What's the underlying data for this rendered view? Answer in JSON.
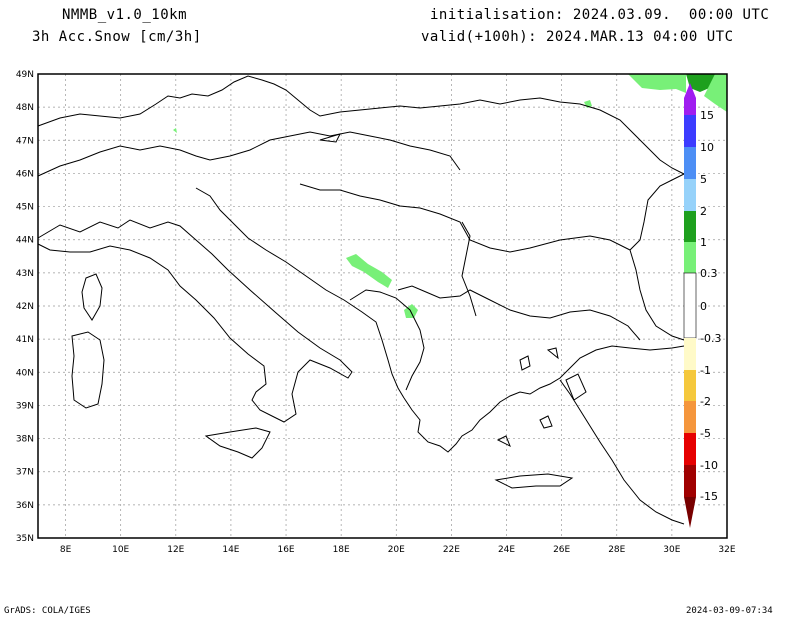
{
  "header": {
    "model": "NMMB_v1.0_10km",
    "field": "3h Acc.Snow [cm/3h]",
    "init": "initialisation: 2024.03.09.  00:00 UTC",
    "valid": "valid(+100h): 2024.MAR.13 04:00 UTC"
  },
  "axes": {
    "lat_labels": [
      "49N",
      "48N",
      "47N",
      "46N",
      "45N",
      "44N",
      "43N",
      "42N",
      "41N",
      "40N",
      "39N",
      "38N",
      "37N",
      "36N",
      "35N"
    ],
    "lon_labels": [
      "8E",
      "10E",
      "12E",
      "14E",
      "16E",
      "18E",
      "20E",
      "22E",
      "24E",
      "26E",
      "28E",
      "30E",
      "32E"
    ],
    "lat_range": [
      35,
      49
    ],
    "lon_range": [
      7,
      32
    ]
  },
  "colorbar": {
    "labels": [
      "15",
      "10",
      "5",
      "2",
      "1",
      "0.3",
      "0",
      "-0.3",
      "-1",
      "-2",
      "-5",
      "-10",
      "-15"
    ],
    "colors": {
      "purple": "#a01ef0",
      "blue": "#3c3cff",
      "mid_blue": "#4d8ff5",
      "light_blue": "#96d2fa",
      "dark_green": "#1ea01e",
      "light_green": "#78f078",
      "white": "#ffffff",
      "pale_yellow": "#fffac8",
      "yellow": "#f5c83c",
      "orange": "#f5963c",
      "red_orange": "#f05a28",
      "red": "#e60000",
      "dark_red": "#a00000",
      "maroon": "#780000"
    }
  },
  "footer": {
    "left": "GrADS: COLA/IGES",
    "right": "2024-03-09-07:34"
  }
}
